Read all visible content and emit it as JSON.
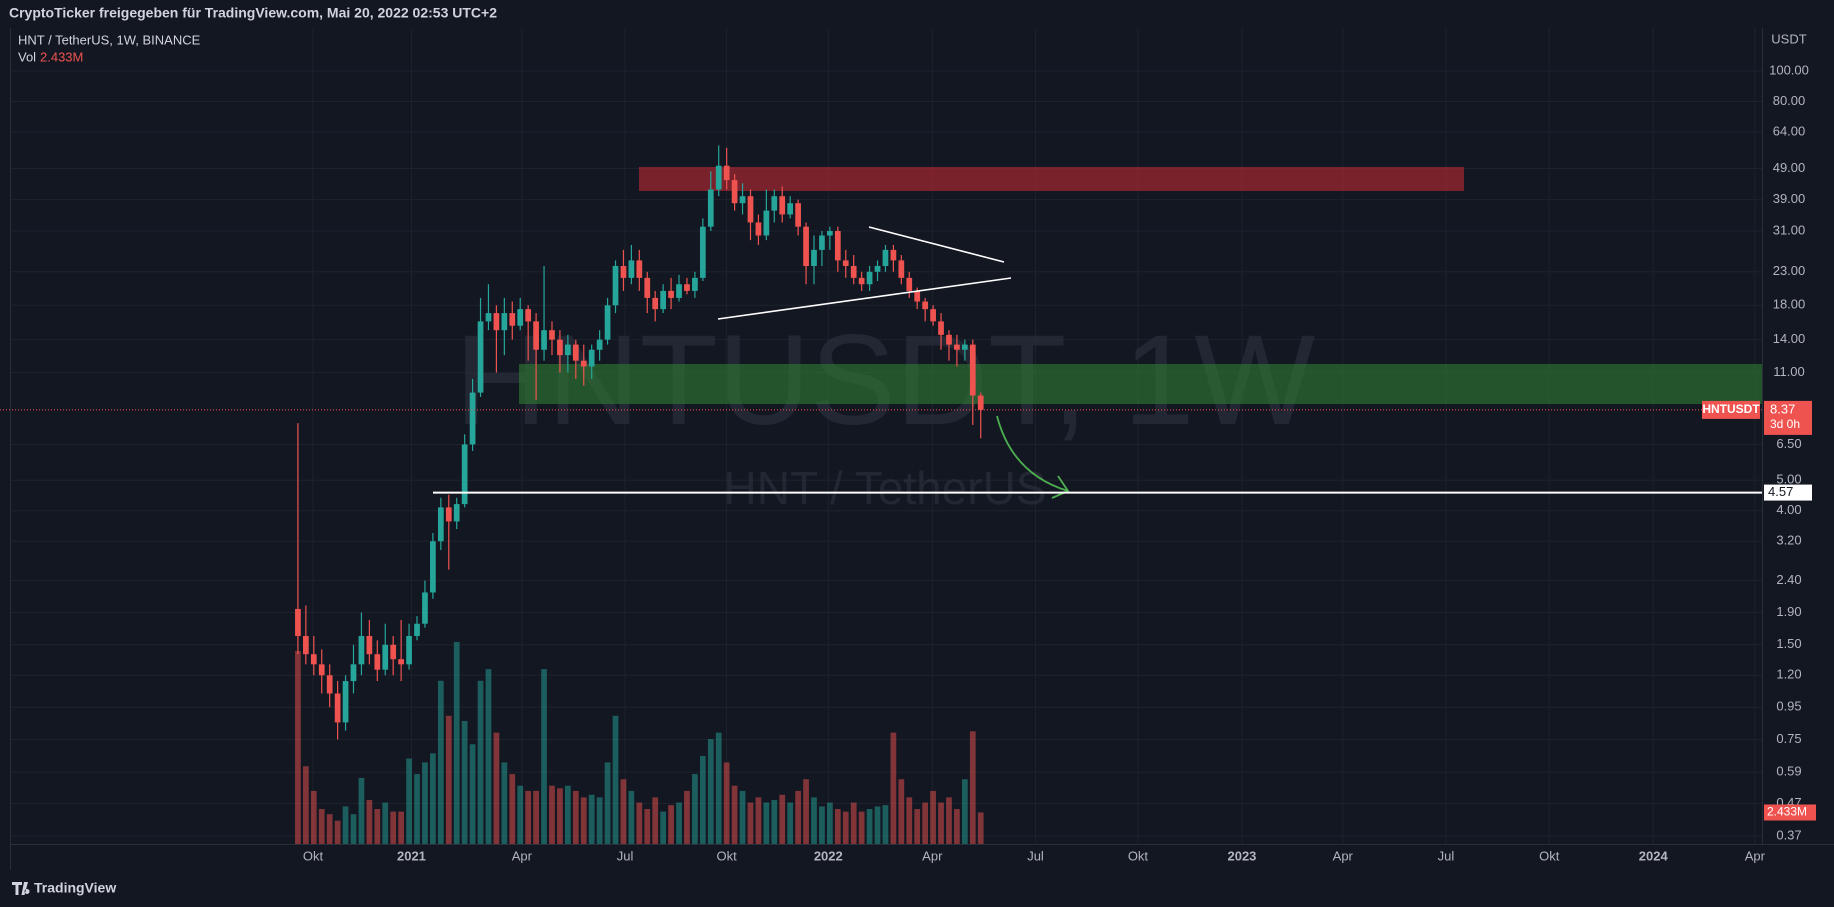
{
  "header": {
    "text": "CryptoTicker freigegeben für TradingView.com, Mai 20, 2022 02:53 UTC+2"
  },
  "chart_data": {
    "type": "candlestick",
    "title": "HNT / TetherUS, 1W, BINANCE",
    "watermark": "HNTUSDT, 1W",
    "watermark_subtitle": "HNT / TetherUS",
    "volume_label": "Vol",
    "volume_value_label": "2.433M",
    "y_unit": "USDT",
    "symbol": "HNTUSDT",
    "countdown": "3d 0h",
    "log_scale": true,
    "grid": true,
    "up_color": "#26a69a",
    "down_color": "#ef5350",
    "xlim": [
      -36.2,
      184.4
    ],
    "xticks": [
      {
        "value": 1.9,
        "label": "Okt"
      },
      {
        "value": 14.3,
        "label": "2021"
      },
      {
        "value": 28.2,
        "label": "Apr"
      },
      {
        "value": 41.2,
        "label": "Jul"
      },
      {
        "value": 54.0,
        "label": "Okt"
      },
      {
        "value": 66.8,
        "label": "2022"
      },
      {
        "value": 79.9,
        "label": "Apr"
      },
      {
        "value": 92.9,
        "label": "Jul"
      },
      {
        "value": 105.8,
        "label": "Okt"
      },
      {
        "value": 118.9,
        "label": "2023"
      },
      {
        "value": 131.6,
        "label": "Apr"
      },
      {
        "value": 144.6,
        "label": "Jul"
      },
      {
        "value": 157.6,
        "label": "Okt"
      },
      {
        "value": 170.7,
        "label": "2024"
      },
      {
        "value": 183.5,
        "label": "Apr"
      }
    ],
    "ylim": [
      0.349,
      137
    ],
    "yticks": [
      {
        "value": 100,
        "label": "100.00"
      },
      {
        "value": 80,
        "label": "80.00"
      },
      {
        "value": 64,
        "label": "64.00"
      },
      {
        "value": 49,
        "label": "49.00"
      },
      {
        "value": 39,
        "label": "39.00"
      },
      {
        "value": 31,
        "label": "31.00"
      },
      {
        "value": 23,
        "label": "23.00"
      },
      {
        "value": 18,
        "label": "18.00"
      },
      {
        "value": 14,
        "label": "14.00"
      },
      {
        "value": 11,
        "label": "11.00"
      },
      {
        "value": 6.5,
        "label": "6.50"
      },
      {
        "value": 5,
        "label": "5.00"
      },
      {
        "value": 4,
        "label": "4.00"
      },
      {
        "value": 3.2,
        "label": "3.20"
      },
      {
        "value": 2.4,
        "label": "2.40"
      },
      {
        "value": 1.9,
        "label": "1.90"
      },
      {
        "value": 1.5,
        "label": "1.50"
      },
      {
        "value": 1.2,
        "label": "1.20"
      },
      {
        "value": 0.95,
        "label": "0.95"
      },
      {
        "value": 0.75,
        "label": "0.75"
      },
      {
        "value": 0.59,
        "label": "0.59"
      },
      {
        "value": 0.47,
        "label": "0.47"
      },
      {
        "value": 0.37,
        "label": "0.37"
      }
    ],
    "level": 4.57,
    "open": [
      1.95,
      1.6,
      1.4,
      1.3,
      1.2,
      1.05,
      0.85,
      1.15,
      1.3,
      1.6,
      1.4,
      1.25,
      1.5,
      1.35,
      1.3,
      1.6,
      1.75,
      2.2,
      3.2,
      4.1,
      3.7,
      4.2,
      6.5,
      9.5,
      16,
      17,
      15,
      17,
      15.5,
      17.5,
      16,
      13,
      15,
      14,
      12.5,
      13.5,
      12,
      11.5,
      13,
      14,
      18,
      24,
      22,
      25,
      22,
      19,
      17.5,
      20,
      19,
      21,
      20,
      22,
      32,
      42,
      50,
      45,
      38,
      40,
      33,
      30,
      36,
      40,
      35,
      38,
      32,
      24,
      27,
      30,
      31,
      25,
      24,
      22,
      21,
      23,
      24,
      27,
      25,
      22,
      20,
      18.5,
      17.5,
      16,
      14.5,
      13.5,
      13,
      13.5,
      9.3
    ],
    "high": [
      7.6,
      2.0,
      1.6,
      1.45,
      1.3,
      1.15,
      1.2,
      1.5,
      1.9,
      1.8,
      1.55,
      1.75,
      1.6,
      1.8,
      1.75,
      1.85,
      2.4,
      3.4,
      4.4,
      4.5,
      4.4,
      7.0,
      10.5,
      19,
      21,
      18,
      19,
      18.5,
      19,
      18,
      17,
      24,
      16,
      15,
      14.5,
      14,
      13.5,
      13.5,
      15,
      19,
      25,
      27,
      28,
      27,
      23,
      20,
      21,
      22,
      22.5,
      22,
      23,
      34,
      48,
      58,
      57,
      47,
      44,
      42,
      35,
      42,
      42,
      43,
      40,
      39,
      33,
      30,
      31,
      32,
      32,
      27,
      26,
      23,
      24,
      25,
      28,
      28,
      26,
      23,
      20.5,
      19,
      18,
      17,
      15,
      14.5,
      14,
      14,
      9.5
    ],
    "low": [
      1.4,
      1.3,
      1.2,
      1.05,
      0.95,
      0.75,
      0.8,
      1.05,
      1.2,
      1.3,
      1.15,
      1.2,
      1.2,
      1.15,
      1.25,
      1.55,
      1.7,
      2.1,
      3.0,
      2.6,
      3.5,
      4.1,
      6.2,
      9.2,
      15,
      11,
      12.5,
      14,
      15,
      12,
      9,
      12,
      12.5,
      11,
      11,
      10.5,
      10,
      10.5,
      12,
      13.5,
      17,
      20,
      21,
      20,
      17,
      16,
      17,
      17.5,
      18.5,
      19.5,
      19,
      21.5,
      31,
      40,
      42,
      36,
      35,
      29,
      28,
      29,
      33,
      33,
      34,
      30,
      21,
      21,
      24,
      27,
      23,
      22,
      21,
      20,
      20,
      21.5,
      23,
      23,
      21,
      19,
      17.5,
      16,
      15.5,
      13,
      12,
      11.5,
      12,
      7.5,
      6.8
    ],
    "close": [
      1.6,
      1.4,
      1.3,
      1.2,
      1.05,
      0.85,
      1.15,
      1.3,
      1.6,
      1.4,
      1.25,
      1.5,
      1.35,
      1.3,
      1.6,
      1.75,
      2.2,
      3.2,
      4.1,
      3.7,
      4.2,
      6.5,
      9.5,
      16,
      17,
      15,
      17,
      15.5,
      17.5,
      16,
      13,
      15,
      14,
      12.5,
      13.5,
      12,
      11.5,
      13,
      14,
      18,
      24,
      22,
      25,
      22,
      19,
      17.5,
      20,
      19,
      21,
      20,
      22,
      32,
      42,
      50,
      45,
      38,
      40,
      33,
      30,
      36,
      40,
      35,
      38,
      32,
      24,
      27,
      30,
      31,
      25,
      24,
      22,
      21,
      23,
      24,
      27,
      25,
      22,
      20,
      18.5,
      17.5,
      16,
      14.5,
      13.5,
      13,
      13.5,
      9.3,
      8.37
    ],
    "volume_ylim": [
      0,
      63
    ],
    "volume": [
      14.9,
      6.0,
      4.1,
      2.7,
      2.3,
      1.8,
      2.9,
      2.3,
      5.1,
      3.4,
      2.7,
      3.2,
      2.5,
      2.5,
      6.6,
      5.4,
      6.3,
      7.0,
      12.6,
      9.9,
      15.6,
      9.5,
      7.7,
      12.6,
      13.5,
      8.6,
      6.3,
      5.4,
      4.5,
      4.1,
      4.1,
      13.5,
      4.5,
      4.3,
      4.5,
      4.1,
      3.6,
      3.8,
      3.6,
      6.3,
      9.9,
      5.0,
      4.1,
      3.2,
      2.7,
      3.6,
      2.5,
      3.0,
      3.2,
      4.1,
      5.4,
      6.8,
      8.1,
      8.6,
      6.3,
      4.5,
      4.1,
      3.2,
      3.6,
      3.2,
      3.4,
      3.8,
      3.2,
      4.1,
      5.0,
      3.6,
      2.9,
      3.2,
      2.7,
      2.5,
      3.2,
      2.5,
      2.7,
      2.9,
      3.0,
      8.6,
      5.0,
      3.6,
      2.7,
      3.2,
      4.1,
      3.2,
      3.6,
      2.7,
      5.0,
      8.7,
      2.433
    ]
  },
  "footer": {
    "brand": "TradingView"
  }
}
